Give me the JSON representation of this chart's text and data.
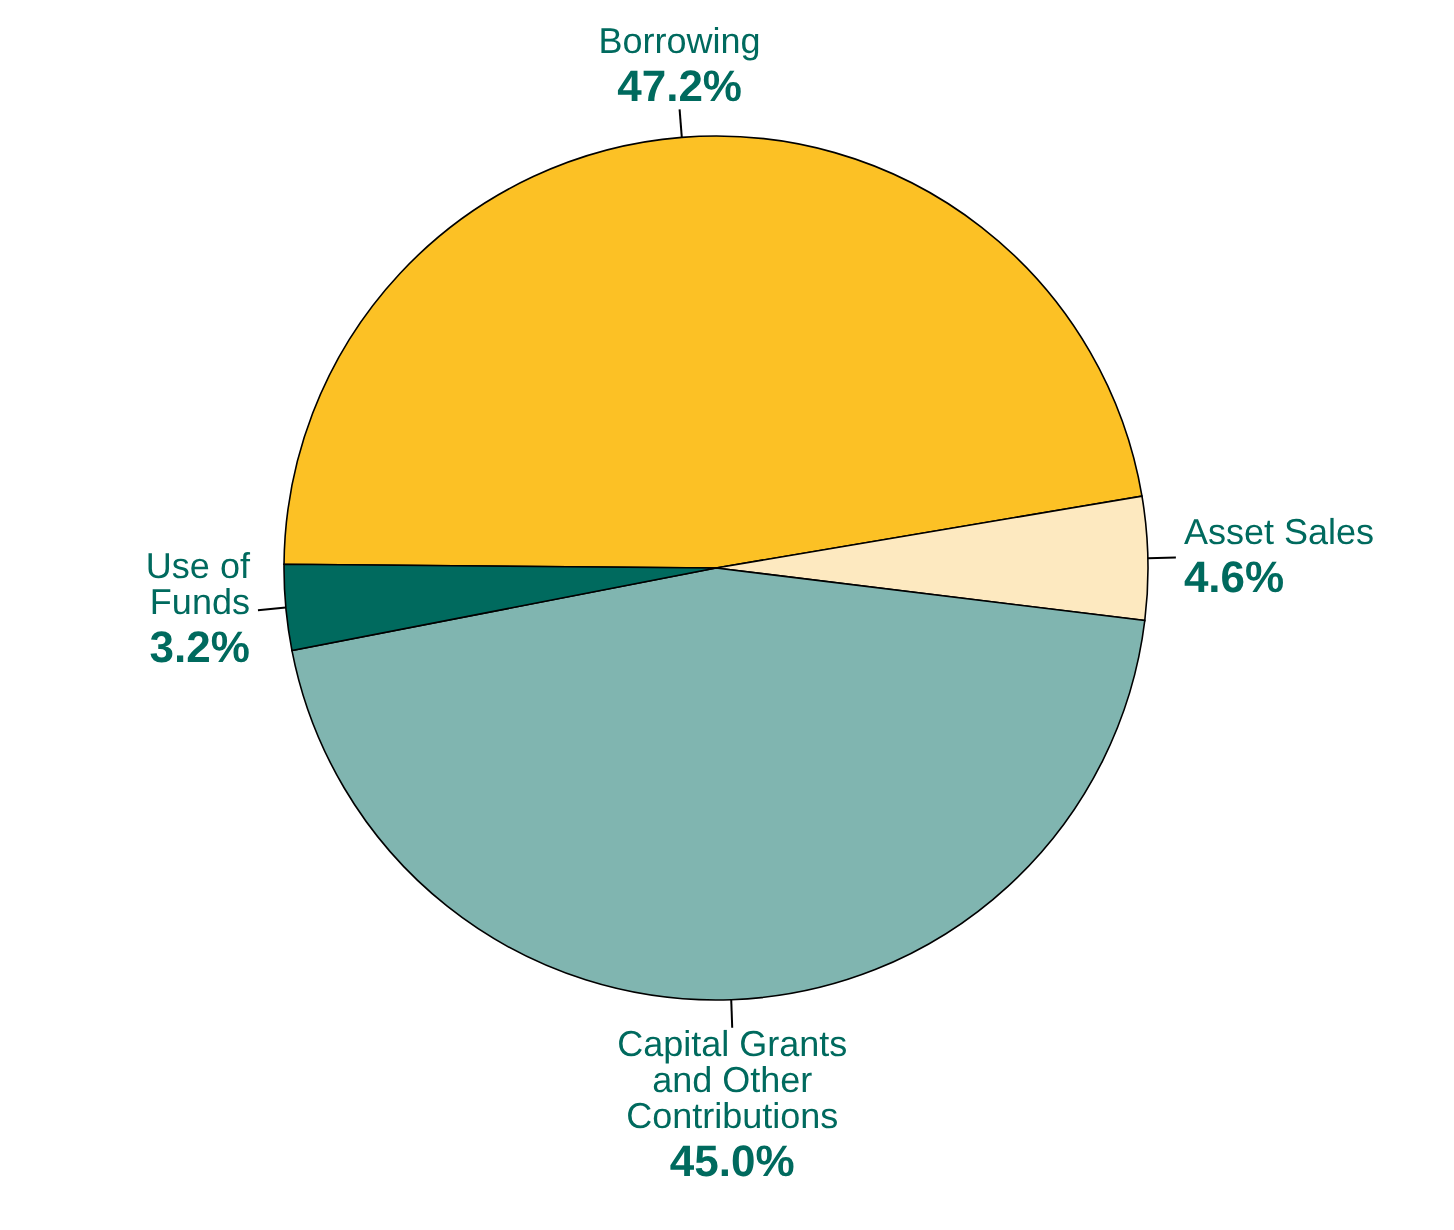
{
  "chart_data": {
    "type": "pie",
    "categories": [
      "Borrowing",
      "Asset Sales",
      "Capital Grants\nand Other\nContributions",
      "Use of\nFunds"
    ],
    "values": [
      47.2,
      4.6,
      45.0,
      3.2
    ],
    "colors": [
      "#fcc125",
      "#fde9c0",
      "#80b5b0",
      "#006a5e"
    ],
    "value_labels": [
      "47.2%",
      "4.6%",
      "45.0%",
      "3.2%"
    ]
  }
}
